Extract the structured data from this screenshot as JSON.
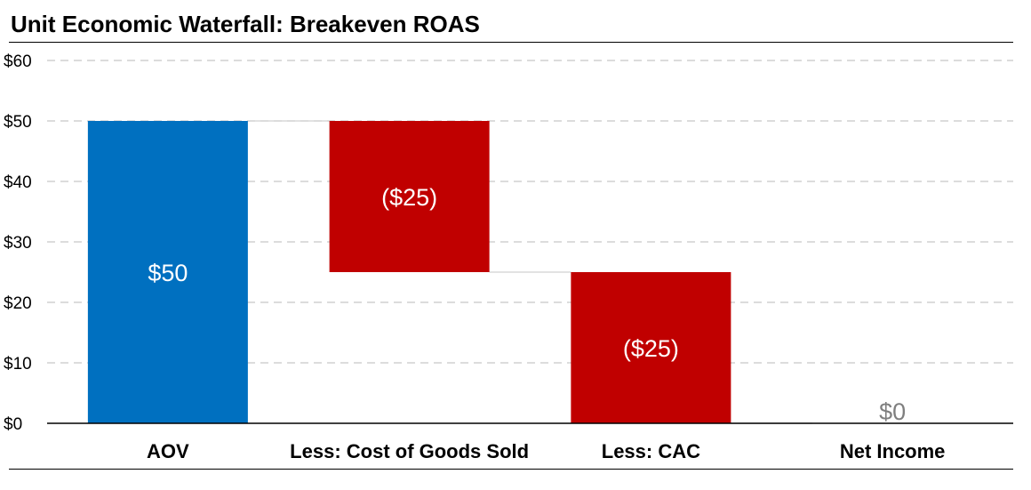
{
  "chart_data": {
    "type": "waterfall",
    "title": "Unit Economic Waterfall: Breakeven ROAS",
    "categories": [
      "AOV",
      "Less: Cost of Goods Sold",
      "Less: CAC",
      "Net Income"
    ],
    "bars": [
      {
        "category": "AOV",
        "kind": "total",
        "start": 0,
        "end": 50,
        "label": "$50",
        "color": "#0070C0"
      },
      {
        "category": "Less: Cost of Goods Sold",
        "kind": "decrease",
        "start": 50,
        "end": 25,
        "label": "($25)",
        "color": "#C00000"
      },
      {
        "category": "Less: CAC",
        "kind": "decrease",
        "start": 25,
        "end": 0,
        "label": "($25)",
        "color": "#C00000"
      },
      {
        "category": "Net Income",
        "kind": "total",
        "start": 0,
        "end": 0,
        "label": "$0",
        "color": "#7F7F7F"
      }
    ],
    "ylim": [
      0,
      60
    ],
    "yticks": [
      0,
      10,
      20,
      30,
      40,
      50,
      60
    ],
    "ytick_labels": [
      "$0",
      "$10",
      "$20",
      "$30",
      "$40",
      "$50",
      "$60"
    ],
    "xlabel": "",
    "ylabel": "",
    "grid": true,
    "legend": "none"
  }
}
